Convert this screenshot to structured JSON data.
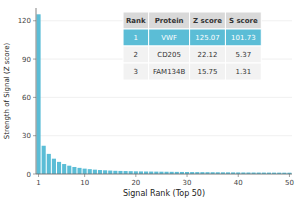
{
  "chart_data": {
    "type": "bar",
    "xlabel": "Signal Rank (Top 50)",
    "ylabel": "Strength of Signal (Z score)",
    "x": [
      1,
      2,
      3,
      4,
      5,
      6,
      7,
      8,
      9,
      10,
      11,
      12,
      13,
      14,
      15,
      16,
      17,
      18,
      19,
      20,
      21,
      22,
      23,
      24,
      25,
      26,
      27,
      28,
      29,
      30,
      31,
      32,
      33,
      34,
      35,
      36,
      37,
      38,
      39,
      40,
      41,
      42,
      43,
      44,
      45,
      46,
      47,
      48,
      49,
      50
    ],
    "values": [
      125.07,
      22.12,
      15.75,
      12.0,
      9.5,
      7.8,
      6.5,
      5.5,
      4.8,
      4.2,
      3.8,
      3.4,
      3.1,
      2.9,
      2.7,
      2.5,
      2.4,
      2.3,
      2.2,
      2.1,
      2.0,
      1.95,
      1.9,
      1.85,
      1.8,
      1.75,
      1.7,
      1.65,
      1.6,
      1.55,
      1.5,
      1.47,
      1.44,
      1.41,
      1.38,
      1.35,
      1.32,
      1.29,
      1.26,
      1.23,
      1.2,
      1.18,
      1.16,
      1.14,
      1.12,
      1.1,
      1.08,
      1.06,
      1.04,
      1.02
    ],
    "color": "#5bbdd6",
    "xlim": [
      0.5,
      50.5
    ],
    "ylim": [
      0,
      130
    ],
    "xticks": [
      1,
      10,
      20,
      30,
      40,
      50
    ],
    "yticks": [
      0,
      30,
      60,
      90,
      120
    ],
    "grid": true,
    "table": {
      "headers": [
        "Rank",
        "Protein",
        "Z score",
        "S score"
      ],
      "rows": [
        [
          "1",
          "VWF",
          "125.07",
          "101.73"
        ],
        [
          "2",
          "CD205",
          "22.12",
          "5.37"
        ],
        [
          "3",
          "FAM134B",
          "15.75",
          "1.31"
        ]
      ]
    }
  }
}
